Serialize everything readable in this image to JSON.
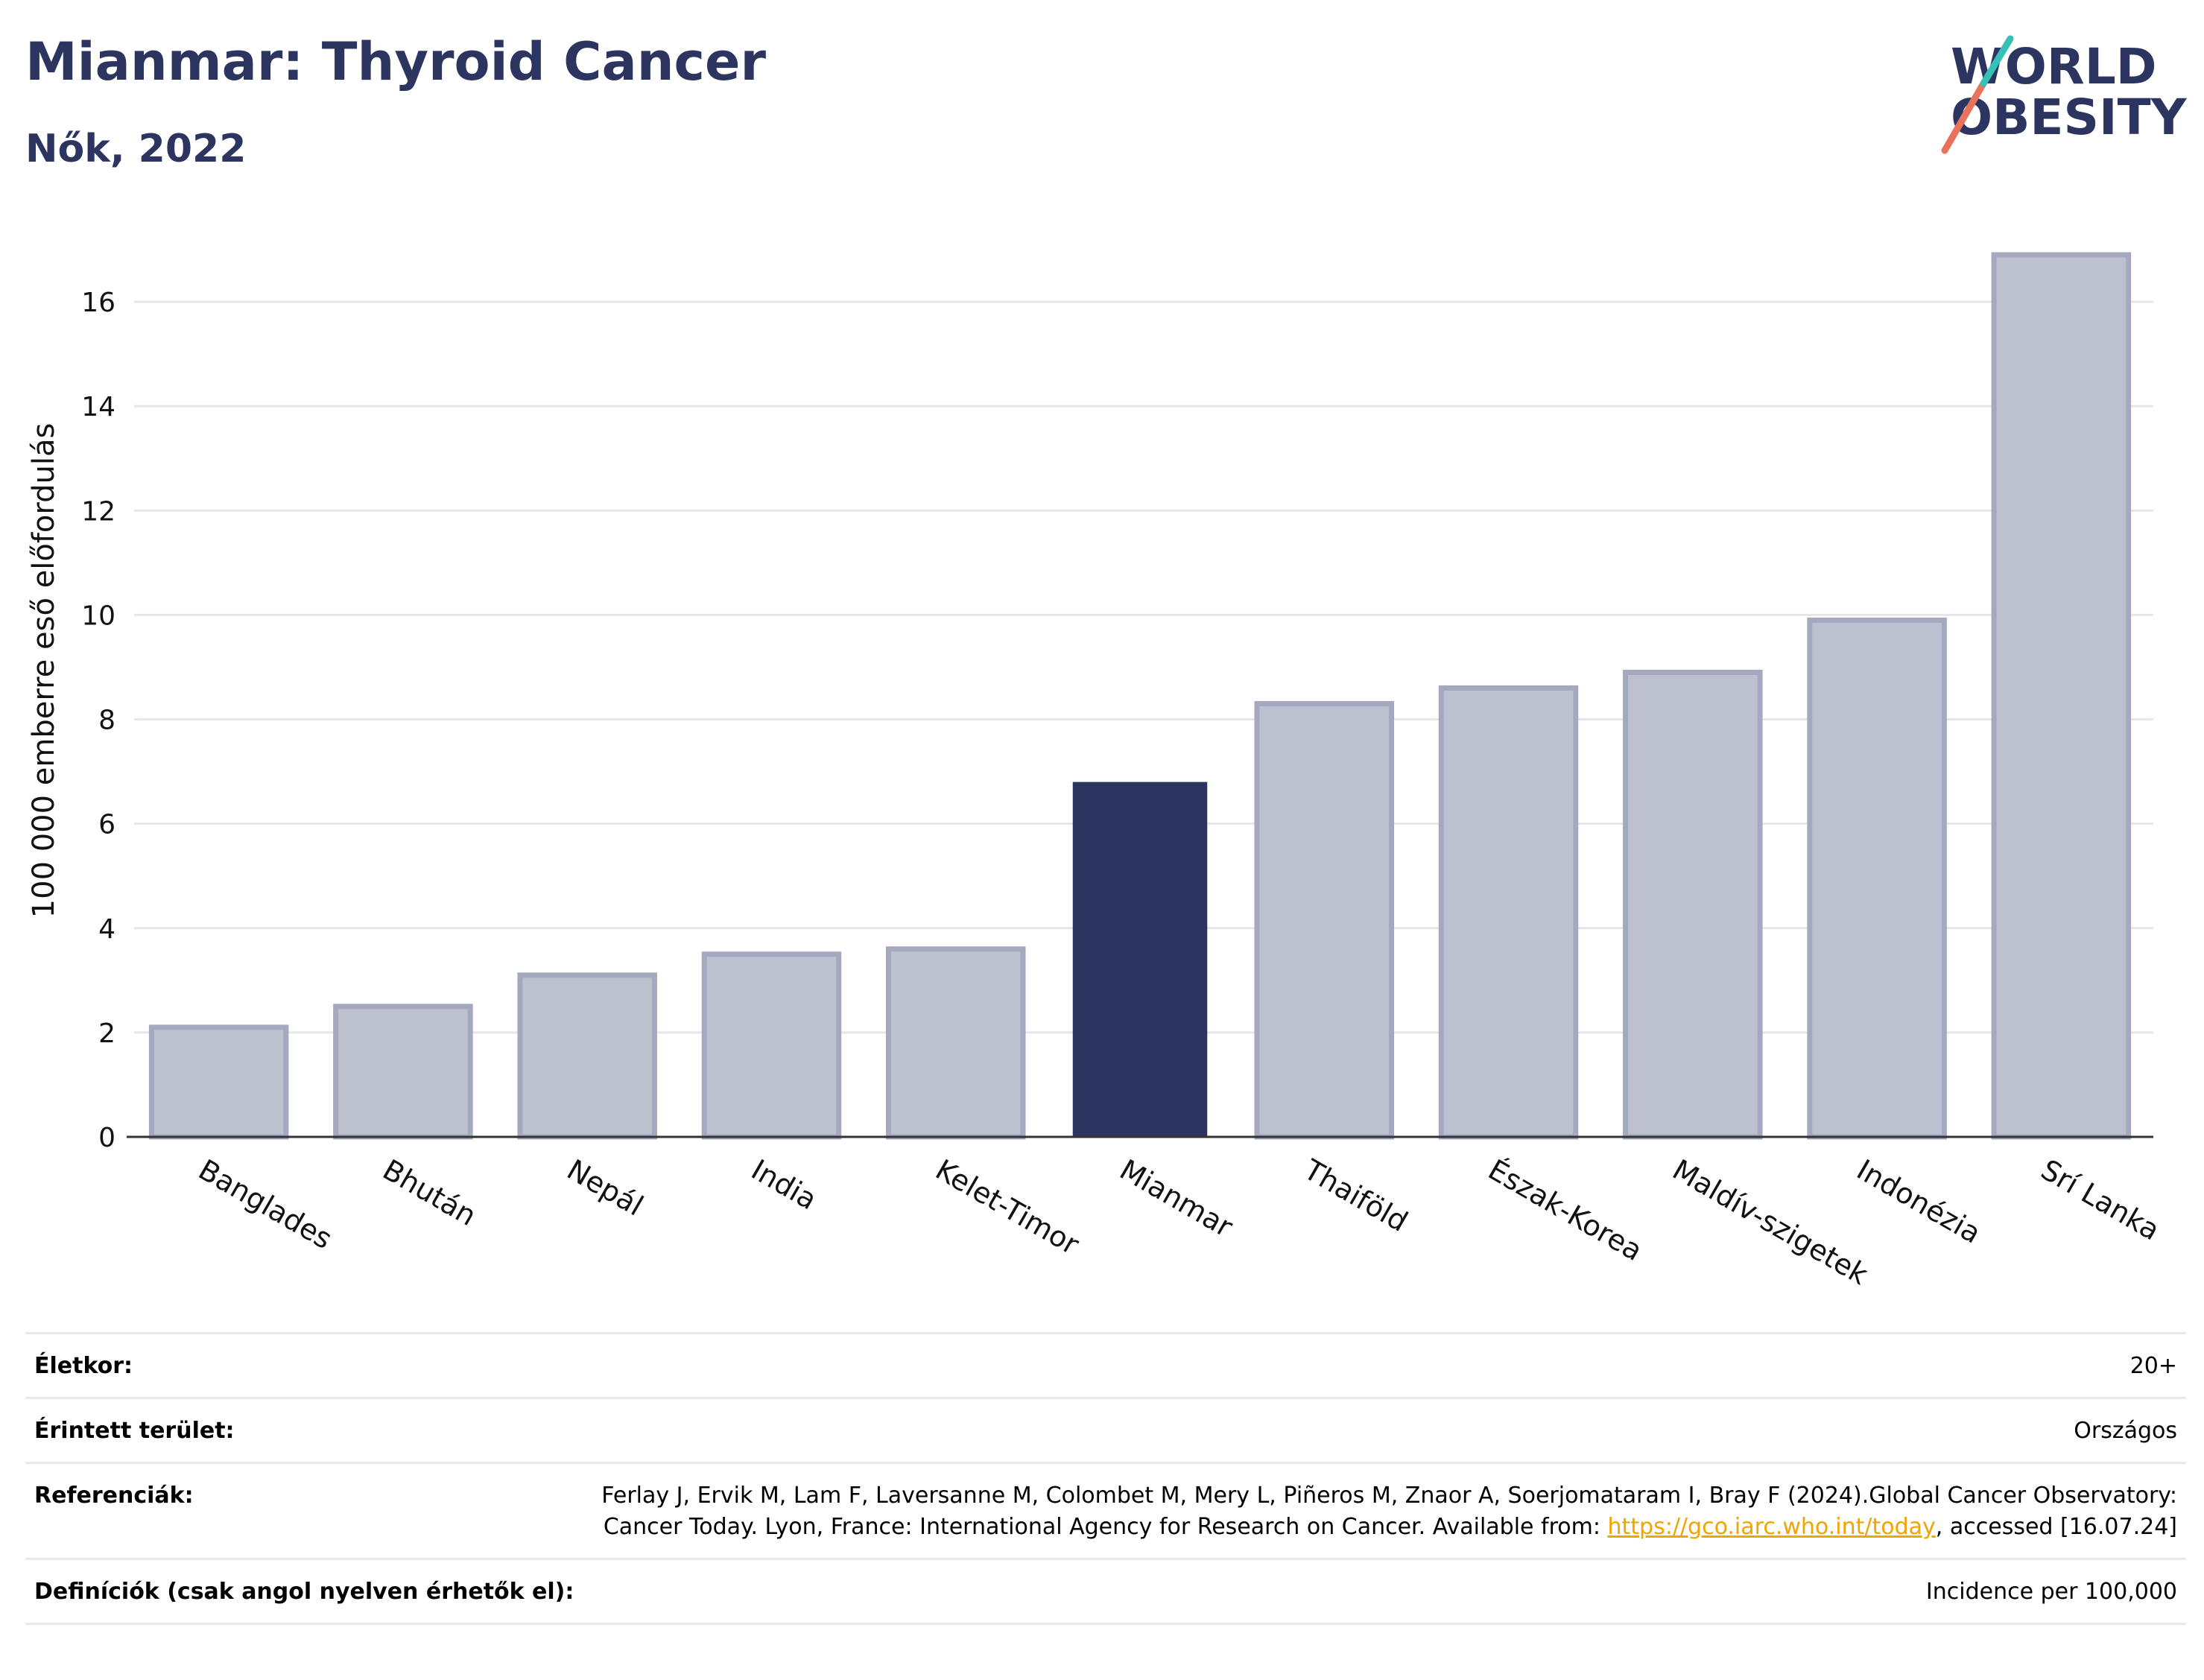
{
  "title": "Mianmar: Thyroid Cancer",
  "subtitle": "Nők, 2022",
  "logo": {
    "line1": "WORLD",
    "line2": "OBESITY"
  },
  "colors": {
    "highlight": "#2c3560",
    "bar": "#bdc1cf",
    "bar_stroke": "#a4a9bf",
    "title": "#2c3560"
  },
  "chart_data": {
    "type": "bar",
    "categories": [
      "Banglades",
      "Bhután",
      "Nepál",
      "India",
      "Kelet-Timor",
      "Mianmar",
      "Thaiföld",
      "Észak-Korea",
      "Maldív-szigetek",
      "Indonézia",
      "Srí Lanka"
    ],
    "values": [
      2.1,
      2.5,
      3.1,
      3.5,
      3.6,
      6.8,
      8.3,
      8.6,
      8.9,
      9.9,
      16.9
    ],
    "highlight": "Mianmar",
    "ylabel": "100 000 emberre eső előfordulás",
    "xlabel": "",
    "ylim": [
      0,
      17.5
    ],
    "yticks": [
      0,
      2,
      4,
      6,
      8,
      10,
      12,
      14,
      16
    ],
    "grid": true
  },
  "meta": {
    "age_label": "Életkor:",
    "age_value": "20+",
    "area_label": "Érintett terület:",
    "area_value": "Országos",
    "ref_label": "Referenciák:",
    "ref_text_1": "Ferlay J, Ervik M, Lam F, Laversanne M, Colombet M, Mery L, Piñeros M, Znaor A, Soerjomataram I, Bray F (2024).Global Cancer Observatory: Cancer Today. Lyon, France: International Agency for Research on Cancer. Available from: ",
    "ref_link": "https://gco.iarc.who.int/today",
    "ref_text_2": ", accessed [16.07.24]",
    "def_label": "Definíciók (csak angol nyelven érhetők el):",
    "def_value": "Incidence per 100,000"
  }
}
